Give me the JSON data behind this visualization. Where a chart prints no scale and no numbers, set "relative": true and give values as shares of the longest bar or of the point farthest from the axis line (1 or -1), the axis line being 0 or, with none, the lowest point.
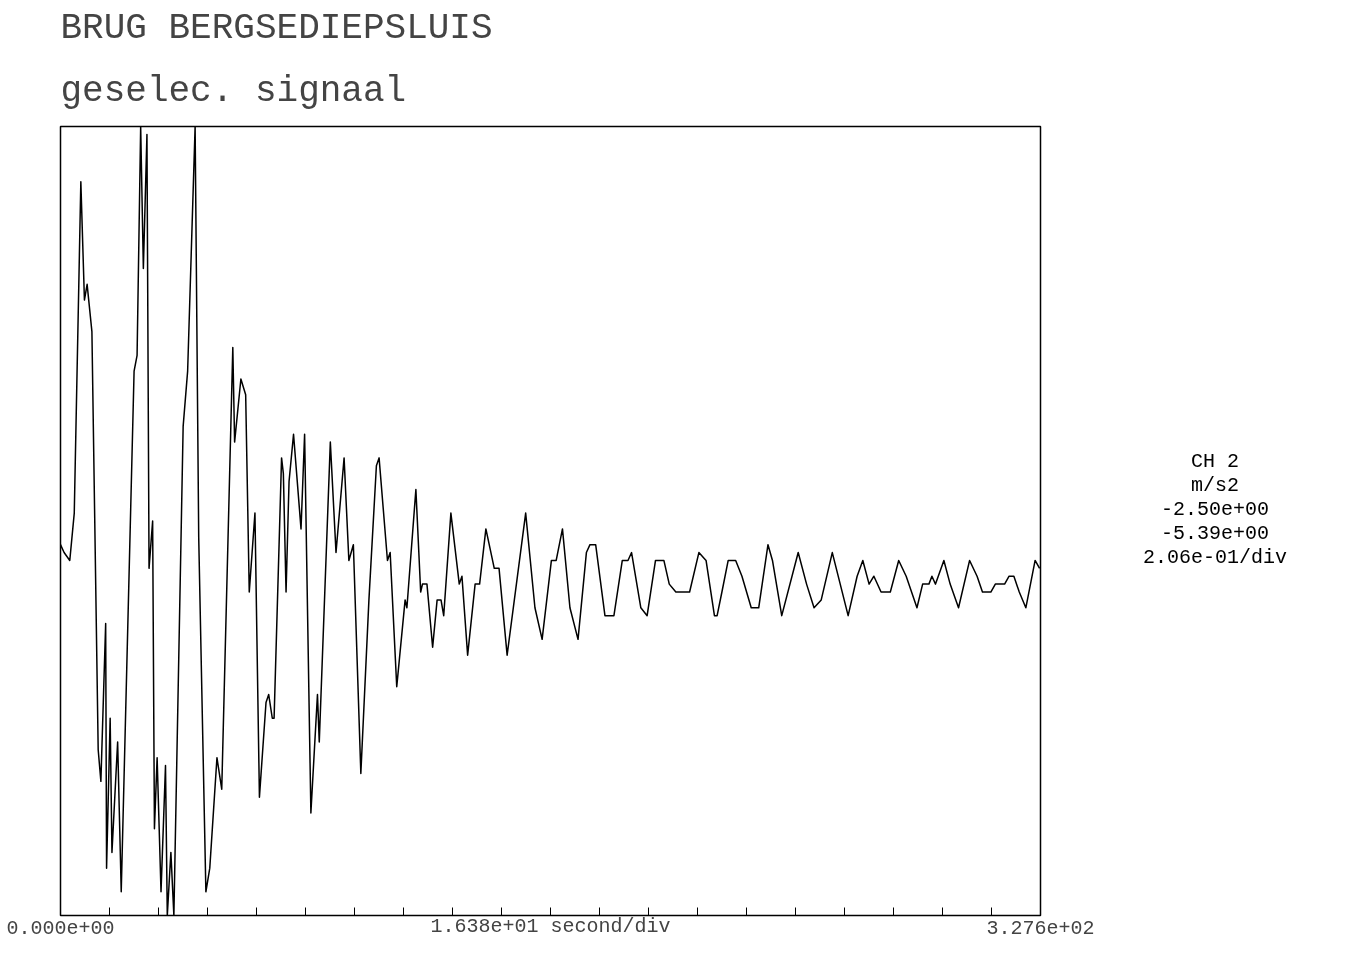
{
  "chart_data": {
    "type": "line",
    "title": "BRUG  BERGSEDIEPSLUIS",
    "subtitle": "geselec. signaal",
    "xlabel": "1.638e+01 second/div",
    "annotations": [
      "CH 2",
      "m/s2",
      "-2.50e+00",
      "-5.39e+00",
      "2.06e-01/div"
    ],
    "relative": true,
    "xlim": [
      0,
      327.6
    ],
    "xticks": [
      {
        "value": 0,
        "label": "0.000e+00"
      },
      {
        "value": 16.38,
        "label": null
      },
      {
        "value": 32.76,
        "label": null
      },
      {
        "value": 49.14,
        "label": null
      },
      {
        "value": 65.52,
        "label": null
      },
      {
        "value": 81.9,
        "label": null
      },
      {
        "value": 98.28,
        "label": null
      },
      {
        "value": 114.66,
        "label": null
      },
      {
        "value": 131.04,
        "label": null
      },
      {
        "value": 147.42,
        "label": null
      },
      {
        "value": 163.8,
        "label": null
      },
      {
        "value": 180.18,
        "label": null
      },
      {
        "value": 196.56,
        "label": null
      },
      {
        "value": 212.94,
        "label": null
      },
      {
        "value": 229.32,
        "label": null
      },
      {
        "value": 245.7,
        "label": null
      },
      {
        "value": 262.08,
        "label": null
      },
      {
        "value": 278.46,
        "label": null
      },
      {
        "value": 294.84,
        "label": null
      },
      {
        "value": 311.22,
        "label": null
      },
      {
        "value": 327.6,
        "label": "3.276e+02"
      }
    ],
    "tick_labels": "x",
    "series": [
      {
        "color": "#000000",
        "x": [
          0.0,
          1.2,
          3.1,
          4.6,
          6.8,
          8.0,
          8.9,
          10.5,
          12.6,
          13.5,
          15.1,
          15.4,
          16.6,
          17.2,
          19.1,
          20.3,
          24.6,
          25.6,
          26.8,
          27.7,
          28.9,
          29.6,
          30.8,
          31.4,
          32.3,
          33.6,
          35.1,
          35.7,
          36.9,
          37.9,
          41.0,
          42.5,
          45.0,
          46.2,
          48.6,
          49.9,
          52.3,
          53.9,
          57.6,
          58.2,
          60.3,
          61.9,
          63.1,
          65.0,
          66.5,
          68.7,
          69.6,
          70.8,
          71.4,
          73.9,
          74.5,
          75.4,
          76.4,
          77.9,
          80.4,
          81.6,
          83.7,
          85.9,
          86.5,
          90.2,
          92.1,
          94.8,
          96.4,
          97.9,
          100.4,
          103.1,
          105.6,
          106.5,
          109.3,
          110.2,
          112.4,
          115.2,
          115.8,
          118.8,
          120.4,
          121.0,
          122.5,
          124.4,
          125.9,
          127.2,
          128.1,
          130.5,
          133.3,
          134.2,
          136.1,
          138.6,
          140.1,
          142.2,
          145.0,
          146.6,
          149.3,
          155.5,
          158.6,
          161.0,
          164.1,
          165.7,
          167.8,
          170.3,
          173.0,
          175.8,
          177.0,
          178.9,
          182.0,
          185.0,
          187.8,
          189.7,
          190.9,
          194.0,
          196.1,
          198.9,
          201.7,
          203.5,
          205.7,
          210.3,
          213.4,
          215.8,
          218.6,
          219.5,
          221.1,
          223.2,
          225.7,
          227.8,
          230.9,
          233.4,
          236.5,
          238.0,
          241.1,
          246.6,
          249.4,
          251.9,
          254.3,
          258.0,
          263.3,
          266.3,
          268.2,
          270.3,
          271.9,
          274.3,
          277.4,
          280.2,
          282.7,
          286.3,
          288.2,
          290.3,
          291.3,
          292.5,
          295.3,
          297.4,
          300.2,
          303.9,
          306.4,
          308.2,
          311.0,
          312.5,
          315.6,
          317.1,
          318.7,
          320.5,
          322.7,
          325.8,
          327.3
        ],
        "values": [
          0.47,
          0.46,
          0.45,
          0.51,
          0.93,
          0.78,
          0.8,
          0.74,
          0.21,
          0.17,
          0.37,
          0.06,
          0.25,
          0.08,
          0.22,
          0.03,
          0.69,
          0.71,
          1.0,
          0.82,
          0.99,
          0.44,
          0.5,
          0.11,
          0.2,
          0.03,
          0.19,
          0,
          0.08,
          0,
          0.62,
          0.69,
          1.0,
          0.48,
          0.03,
          0.06,
          0.2,
          0.16,
          0.72,
          0.6,
          0.68,
          0.66,
          0.41,
          0.51,
          0.15,
          0.27,
          0.28,
          0.25,
          0.25,
          0.58,
          0.56,
          0.41,
          0.55,
          0.61,
          0.49,
          0.61,
          0.13,
          0.28,
          0.22,
          0.6,
          0.46,
          0.58,
          0.45,
          0.47,
          0.18,
          0.4,
          0.57,
          0.58,
          0.45,
          0.46,
          0.29,
          0.4,
          0.39,
          0.54,
          0.41,
          0.42,
          0.42,
          0.34,
          0.4,
          0.4,
          0.38,
          0.51,
          0.42,
          0.43,
          0.33,
          0.42,
          0.42,
          0.49,
          0.44,
          0.44,
          0.33,
          0.51,
          0.39,
          0.35,
          0.45,
          0.45,
          0.49,
          0.39,
          0.35,
          0.46,
          0.47,
          0.47,
          0.38,
          0.38,
          0.45,
          0.45,
          0.46,
          0.39,
          0.38,
          0.45,
          0.45,
          0.42,
          0.41,
          0.41,
          0.46,
          0.45,
          0.38,
          0.38,
          0.41,
          0.45,
          0.45,
          0.43,
          0.39,
          0.39,
          0.47,
          0.45,
          0.38,
          0.46,
          0.42,
          0.39,
          0.4,
          0.46,
          0.38,
          0.43,
          0.45,
          0.42,
          0.43,
          0.41,
          0.41,
          0.45,
          0.43,
          0.39,
          0.42,
          0.42,
          0.43,
          0.42,
          0.45,
          0.42,
          0.39,
          0.45,
          0.43,
          0.41,
          0.41,
          0.42,
          0.42,
          0.43,
          0.43,
          0.41,
          0.39,
          0.45,
          0.44
        ]
      }
    ]
  }
}
